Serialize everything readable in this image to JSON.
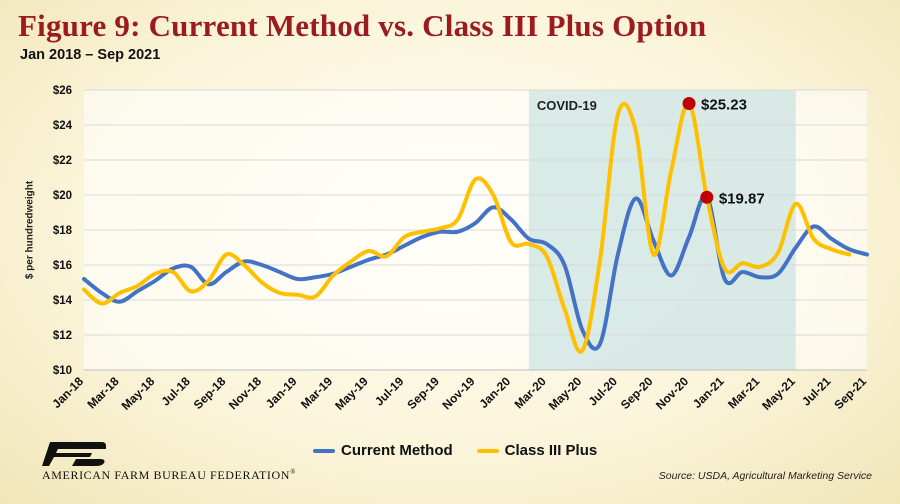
{
  "header": {
    "title": "Figure 9: Current Method vs. Class III Plus Option",
    "subtitle": "Jan 2018 – Sep 2021"
  },
  "footer": {
    "org_name": "American Farm Bureau Federation",
    "logo_text": "FB",
    "source": "Source: USDA, Agricultural Marketing Service"
  },
  "colors": {
    "current": "#4472c4",
    "class3plus": "#ffc000",
    "covid_band": "#cfe6e4",
    "marker": "#c00000",
    "title": "#9b1b1e"
  },
  "chart_data": {
    "type": "line",
    "xlabel": "",
    "ylabel": "$ per hundredweight",
    "ylim": [
      10,
      26
    ],
    "yticks": [
      10,
      12,
      14,
      16,
      18,
      20,
      22,
      24,
      26
    ],
    "ytick_format": "$",
    "grid": true,
    "legend_position": "bottom",
    "x": [
      "Jan-18",
      "Feb-18",
      "Mar-18",
      "Apr-18",
      "May-18",
      "Jun-18",
      "Jul-18",
      "Aug-18",
      "Sep-18",
      "Oct-18",
      "Nov-18",
      "Dec-18",
      "Jan-19",
      "Feb-19",
      "Mar-19",
      "Apr-19",
      "May-19",
      "Jun-19",
      "Jul-19",
      "Aug-19",
      "Sep-19",
      "Oct-19",
      "Nov-19",
      "Dec-19",
      "Jan-20",
      "Feb-20",
      "Mar-20",
      "Apr-20",
      "May-20",
      "Jun-20",
      "Jul-20",
      "Aug-20",
      "Sep-20",
      "Oct-20",
      "Nov-20",
      "Dec-20",
      "Jan-21",
      "Feb-21",
      "Mar-21",
      "Apr-21",
      "May-21",
      "Jun-21",
      "Jul-21",
      "Aug-21",
      "Sep-21"
    ],
    "xtick_labels": [
      "Jan-18",
      "Mar-18",
      "May-18",
      "Jul-18",
      "Sep-18",
      "Nov-18",
      "Jan-19",
      "Mar-19",
      "May-19",
      "Jul-19",
      "Sep-19",
      "Nov-19",
      "Jan-20",
      "Mar-20",
      "May-20",
      "Jul-20",
      "Sep-20",
      "Nov-20",
      "Jan-21",
      "Mar-21",
      "May-21",
      "Jul-21",
      "Sep-21"
    ],
    "series": [
      {
        "name": "Current Method",
        "color": "#4472c4",
        "values": [
          15.2,
          14.4,
          13.9,
          14.5,
          15.1,
          15.8,
          15.9,
          14.9,
          15.6,
          16.2,
          16.0,
          15.6,
          15.2,
          15.3,
          15.5,
          15.9,
          16.3,
          16.6,
          17.1,
          17.6,
          17.9,
          17.9,
          18.4,
          19.3,
          18.6,
          17.5,
          17.2,
          16.0,
          12.3,
          11.5,
          16.6,
          19.8,
          17.4,
          15.4,
          17.6,
          19.9,
          15.2,
          15.6,
          15.3,
          15.5,
          17.0,
          18.2,
          17.5,
          16.9,
          16.6
        ]
      },
      {
        "name": "Class III Plus",
        "color": "#ffc000",
        "values": [
          14.6,
          13.8,
          14.4,
          14.8,
          15.5,
          15.6,
          14.5,
          15.1,
          16.6,
          16.0,
          15.0,
          14.4,
          14.3,
          14.2,
          15.4,
          16.2,
          16.8,
          16.5,
          17.6,
          17.9,
          18.1,
          18.6,
          20.9,
          20.0,
          17.3,
          17.2,
          16.5,
          13.5,
          11.1,
          16.3,
          24.6,
          23.7,
          16.6,
          21.4,
          25.23,
          19.87,
          15.8,
          16.1,
          15.9,
          16.7,
          19.5,
          17.5,
          16.9,
          16.6,
          null
        ]
      }
    ],
    "covid_band": {
      "label": "COVID-19",
      "x_start": "Feb-20",
      "x_end": "May-21"
    },
    "annotations": [
      {
        "x": "Nov-20",
        "y": 25.23,
        "label": "$25.23"
      },
      {
        "x": "Dec-20",
        "y": 19.87,
        "label": "$19.87"
      }
    ]
  }
}
